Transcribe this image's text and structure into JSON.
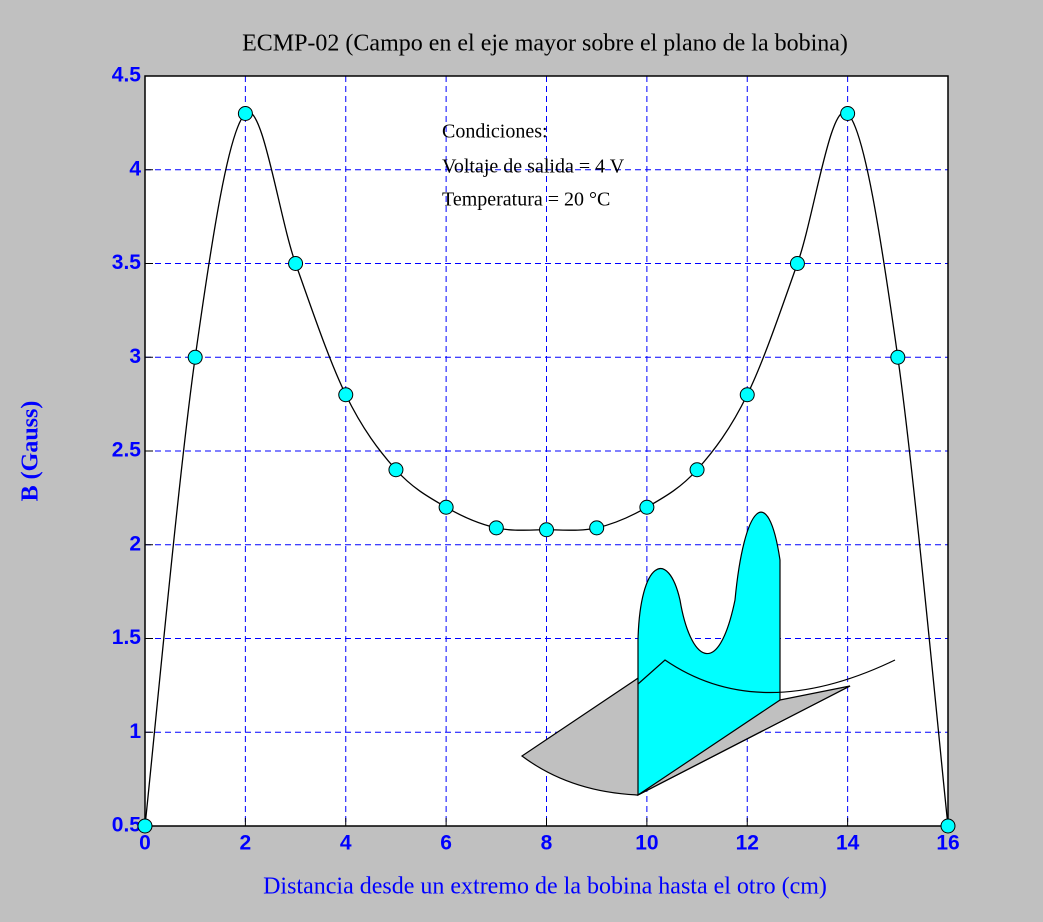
{
  "chart_data": {
    "type": "line",
    "title": "ECMP-02 (Campo en el eje mayor sobre el plano de la bobina)",
    "x_label": "Distancia desde un extremo de la bobina hasta el otro (cm)",
    "y_label": "B (Gauss)",
    "annotations": [
      "Condiciones:",
      "Voltaje de salida = 4 V",
      "Temperatura = 20 °C"
    ],
    "x": [
      0,
      1,
      2,
      3,
      4,
      5,
      6,
      7,
      8,
      9,
      10,
      11,
      12,
      13,
      14,
      15,
      16
    ],
    "series": [
      {
        "color": "#00ffff",
        "values": [
          0.5,
          3.0,
          4.3,
          3.5,
          2.8,
          2.4,
          2.2,
          2.09,
          2.08,
          2.09,
          2.2,
          2.4,
          2.8,
          3.5,
          4.3,
          3.0,
          0.5
        ]
      }
    ],
    "xlim": [
      0,
      16
    ],
    "ylim": [
      0.5,
      4.5
    ],
    "xticks": [
      0,
      2,
      4,
      6,
      8,
      10,
      12,
      14,
      16
    ],
    "yticks": [
      0.5,
      1,
      1.5,
      2,
      2.5,
      3,
      3.5,
      4,
      4.5
    ],
    "grid": true
  }
}
